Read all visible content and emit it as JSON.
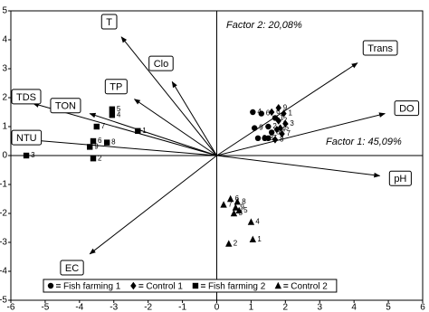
{
  "chart_data": {
    "type": "scatter",
    "xlim": [
      -6,
      6
    ],
    "xticks": [
      -6,
      -5,
      -4,
      -3,
      -2,
      -1,
      0,
      1,
      2,
      3,
      4,
      5,
      6
    ],
    "ylim": [
      -5,
      5
    ],
    "yticks": [
      -5,
      -4,
      -3,
      -2,
      -1,
      0,
      1,
      2,
      3,
      4,
      5
    ],
    "annotations": [
      "Factor 2: 20,08%",
      "Factor 1: 45,09%"
    ],
    "vectors": [
      {
        "name": "T",
        "x": -2.78,
        "y": 4.1
      },
      {
        "name": "TP",
        "x": -2.4,
        "y": 1.95
      },
      {
        "name": "Clo",
        "x": -1.3,
        "y": 2.55
      },
      {
        "name": "TDS",
        "x": -5.35,
        "y": 1.8
      },
      {
        "name": "TON",
        "x": -3.7,
        "y": 1.45
      },
      {
        "name": "NTU",
        "x": -5.55,
        "y": 0.55
      },
      {
        "name": "EC",
        "x": -3.7,
        "y": -3.4
      },
      {
        "name": "Trans",
        "x": 4.1,
        "y": 3.2
      },
      {
        "name": "DO",
        "x": 4.9,
        "y": 1.45
      },
      {
        "name": "pH",
        "x": 4.75,
        "y": -0.7
      }
    ],
    "series": [
      {
        "name": "Fish farming 1",
        "marker": "circle",
        "color": "#000000",
        "x": [
          1.7,
          1.5,
          1.4,
          1.05,
          1.6,
          1.3,
          1.5,
          1.2,
          1.1
        ],
        "values": [
          1.3,
          1.0,
          0.6,
          1.5,
          0.8,
          1.45,
          0.6,
          0.6,
          0.95
        ],
        "labels": [
          "1",
          "2",
          "3",
          "4",
          "5",
          "6",
          "7",
          "8",
          "9"
        ]
      },
      {
        "name": "Control 1",
        "marker": "diamond",
        "color": "#000000",
        "x": [
          1.95,
          1.8,
          2.0,
          1.75,
          1.85,
          1.6,
          1.9,
          1.7,
          1.8
        ],
        "values": [
          1.45,
          1.2,
          1.1,
          0.9,
          0.95,
          1.5,
          0.75,
          0.55,
          1.65
        ],
        "labels": [
          "1",
          "2",
          "3",
          "4",
          "5",
          "6",
          "7",
          "8",
          "9"
        ]
      },
      {
        "name": "Fish farming 2",
        "marker": "square",
        "color": "#000000",
        "x": [
          -2.3,
          -3.6,
          -5.55,
          -3.05,
          -3.05,
          -3.6,
          -3.5,
          -3.2,
          -3.7
        ],
        "values": [
          0.85,
          -0.1,
          0.0,
          1.4,
          1.6,
          0.5,
          1.0,
          0.45,
          0.3
        ],
        "labels": [
          "1",
          "2",
          "3",
          "4",
          "5",
          "6",
          "7",
          "8",
          "9"
        ]
      },
      {
        "name": "Control 2",
        "marker": "triangle",
        "color": "#000000",
        "x": [
          1.05,
          0.35,
          0.5,
          1.0,
          0.65,
          0.4,
          0.2,
          0.6,
          0.55
        ],
        "values": [
          -2.9,
          -3.05,
          -2.0,
          -2.3,
          -1.9,
          -1.5,
          -1.7,
          -1.6,
          -1.8
        ],
        "labels": [
          "1",
          "2",
          "3",
          "4",
          "5",
          "6",
          "7",
          "8",
          "9"
        ]
      }
    ]
  }
}
